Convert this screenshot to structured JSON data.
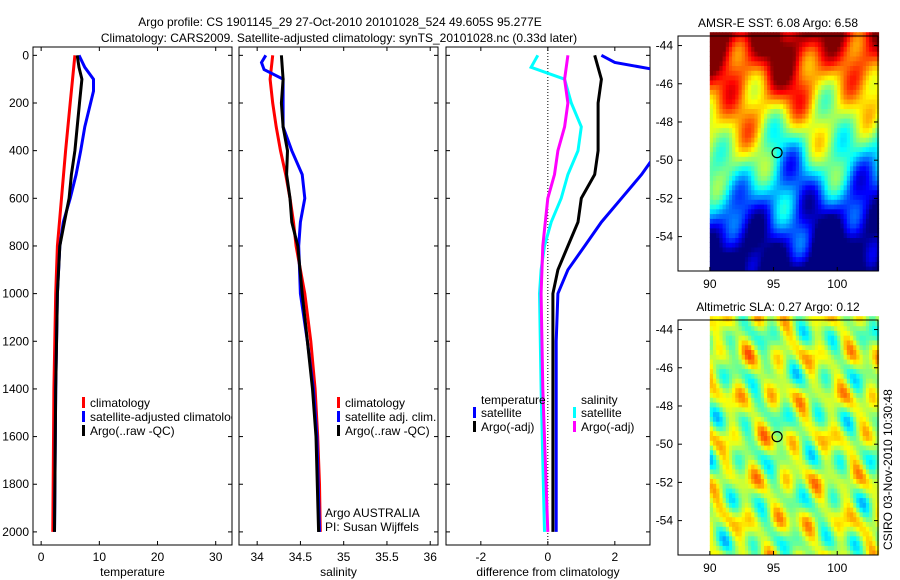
{
  "title_line1": "Argo profile: CS 1901145_29 27-Oct-2010 20101028_524 49.605S 95.277E",
  "title_line2": "Climatology: CARS2009. Satellite-adjusted climatology: synTS_20101028.nc (0.33d later)",
  "side_stamp": "CSIRO 03-Nov-2010 10:30:48",
  "colors": {
    "red": "#ff0000",
    "blue": "#0000ff",
    "black": "#000000",
    "cyan": "#00ffff",
    "magenta": "#ff00ff"
  },
  "chart_data": [
    {
      "type": "line",
      "id": "temperature",
      "xlabel": "temperature",
      "ylabel": "",
      "xlim": [
        -1.4,
        32.8
      ],
      "ylim": [
        -35,
        2055
      ],
      "y_reversed": true,
      "xticks": [
        0,
        10,
        20,
        30
      ],
      "yticks": [
        0,
        200,
        400,
        600,
        800,
        1000,
        1200,
        1400,
        1600,
        1800,
        2000
      ],
      "legend": [
        "climatology",
        "satellite-adjusted climatology",
        "Argo(..raw -QC)"
      ],
      "series": [
        {
          "name": "climatology",
          "color": "#ff0000",
          "width": 3,
          "y": [
            0,
            200,
            400,
            600,
            800,
            1000,
            1400,
            2000
          ],
          "x": [
            5.8,
            5.0,
            4.2,
            3.5,
            2.8,
            2.5,
            2.2,
            2.0
          ]
        },
        {
          "name": "satellite-adjusted climatology",
          "color": "#0000ff",
          "width": 3,
          "y": [
            0,
            50,
            100,
            150,
            200,
            300,
            400,
            500,
            600,
            700,
            800,
            1000,
            1400,
            2000
          ],
          "x": [
            6.5,
            7.5,
            9.0,
            9.0,
            8.5,
            7.5,
            6.8,
            6.0,
            5.0,
            3.8,
            3.2,
            2.8,
            2.5,
            2.3
          ]
        },
        {
          "name": "Argo(..raw -QC)",
          "color": "#000000",
          "width": 3,
          "y": [
            0,
            50,
            100,
            200,
            300,
            400,
            500,
            600,
            700,
            800,
            1000,
            1400,
            2000
          ],
          "x": [
            6.2,
            6.5,
            7.0,
            6.6,
            6.2,
            5.8,
            5.2,
            4.8,
            4.0,
            3.2,
            2.8,
            2.5,
            2.3
          ]
        }
      ]
    },
    {
      "type": "line",
      "id": "salinity",
      "xlabel": "salinity",
      "xlim": [
        33.79,
        36.09
      ],
      "ylim": [
        -35,
        2055
      ],
      "y_reversed": true,
      "xticks": [
        34,
        34.5,
        35,
        35.5,
        36
      ],
      "legend": [
        "climatology",
        "satellite adj. clim.",
        "Argo(..raw -QC)"
      ],
      "annotation": [
        "Argo AUSTRALIA",
        "PI: Susan Wijffels"
      ],
      "series": [
        {
          "name": "climatology",
          "color": "#ff0000",
          "width": 3,
          "y": [
            0,
            100,
            200,
            300,
            400,
            500,
            600,
            700,
            800,
            900,
            1000,
            1200,
            1400,
            1600,
            1800,
            2000
          ],
          "x": [
            34.18,
            34.15,
            34.18,
            34.22,
            34.27,
            34.33,
            34.38,
            34.42,
            34.45,
            34.5,
            34.55,
            34.62,
            34.67,
            34.7,
            34.72,
            34.73
          ]
        },
        {
          "name": "satellite adj. clim.",
          "color": "#0000ff",
          "width": 3,
          "y": [
            0,
            30,
            60,
            100,
            300,
            400,
            500,
            600,
            700,
            800,
            1000,
            1200,
            1400,
            1600,
            2000
          ],
          "x": [
            34.1,
            34.05,
            34.08,
            34.3,
            34.3,
            34.4,
            34.52,
            34.55,
            34.5,
            34.48,
            34.5,
            34.58,
            34.65,
            34.69,
            34.72
          ]
        },
        {
          "name": "Argo(..raw -QC)",
          "color": "#000000",
          "width": 3,
          "y": [
            0,
            100,
            200,
            300,
            400,
            500,
            600,
            700,
            800,
            1000,
            1200,
            1400,
            1600,
            2000
          ],
          "x": [
            34.28,
            34.3,
            34.28,
            34.3,
            34.35,
            34.34,
            34.38,
            34.4,
            34.47,
            34.52,
            34.58,
            34.64,
            34.68,
            34.71
          ]
        }
      ]
    },
    {
      "type": "line",
      "id": "difference",
      "xlabel": "difference from climatology",
      "xlim": [
        -3.04,
        3.05
      ],
      "ylim": [
        -35,
        2055
      ],
      "y_reversed": true,
      "xticks": [
        -2,
        0,
        2
      ],
      "legend_headers": [
        "temperature",
        "salinity"
      ],
      "legend": [
        "satellite",
        "Argo(-adj)",
        "satellite",
        "Argo(-adj)"
      ],
      "series": [
        {
          "name": "temperature satellite",
          "color": "#0000ff",
          "width": 3,
          "y": [
            0,
            30,
            60,
            100,
            400,
            500,
            600,
            700,
            800,
            900,
            1000,
            1200,
            2000
          ],
          "x": [
            1.6,
            2.0,
            3.2,
            3.5,
            3.3,
            2.8,
            2.2,
            1.6,
            1.1,
            0.6,
            0.3,
            0.25,
            0.25
          ]
        },
        {
          "name": "temperature Argo(-adj)",
          "color": "#000000",
          "width": 3,
          "y": [
            0,
            100,
            200,
            400,
            500,
            600,
            700,
            800,
            900,
            1000,
            2000
          ],
          "x": [
            1.4,
            1.6,
            1.5,
            1.5,
            1.4,
            1.0,
            0.9,
            0.6,
            0.3,
            0.15,
            0.15
          ]
        },
        {
          "name": "salinity satellite",
          "color": "#00ffff",
          "width": 3,
          "y": [
            0,
            50,
            100,
            200,
            300,
            400,
            500,
            600,
            700,
            800,
            900,
            1000,
            1400,
            2000
          ],
          "x": [
            -0.3,
            -0.5,
            0.5,
            0.7,
            1.0,
            0.9,
            0.6,
            0.4,
            0.1,
            -0.1,
            -0.2,
            -0.25,
            -0.2,
            -0.1
          ]
        },
        {
          "name": "salinity Argo(-adj)",
          "color": "#ff00ff",
          "width": 3,
          "y": [
            0,
            100,
            200,
            300,
            400,
            500,
            600,
            800,
            1000,
            1400,
            2000
          ],
          "x": [
            0.6,
            0.5,
            0.6,
            0.5,
            0.3,
            0.2,
            0.0,
            -0.15,
            -0.2,
            -0.15,
            0.0
          ]
        }
      ]
    },
    {
      "type": "heatmap",
      "id": "sst-map",
      "title": "AMSR-E SST: 6.08 Argo: 6.58",
      "xlim": [
        87.5,
        103.2
      ],
      "ylim": [
        -55.8,
        -43.5
      ],
      "xticks": [
        90,
        95,
        100
      ],
      "yticks": [
        -44,
        -46,
        -48,
        -50,
        -52,
        -54
      ],
      "data_xrange": [
        90,
        103.2
      ],
      "float_position": [
        95.277,
        -49.605
      ],
      "colormap": "jet"
    },
    {
      "type": "heatmap",
      "id": "sla-map",
      "title": "Altimetric SLA: 0.27 Argo: 0.12",
      "xlim": [
        87.5,
        103.2
      ],
      "ylim": [
        -55.8,
        -43.5
      ],
      "xticks": [
        90,
        95,
        100
      ],
      "yticks": [
        -44,
        -46,
        -48,
        -50,
        -52,
        -54
      ],
      "data_xrange": [
        90,
        103.2
      ],
      "float_position": [
        95.277,
        -49.605
      ],
      "colormap": "jet"
    }
  ]
}
